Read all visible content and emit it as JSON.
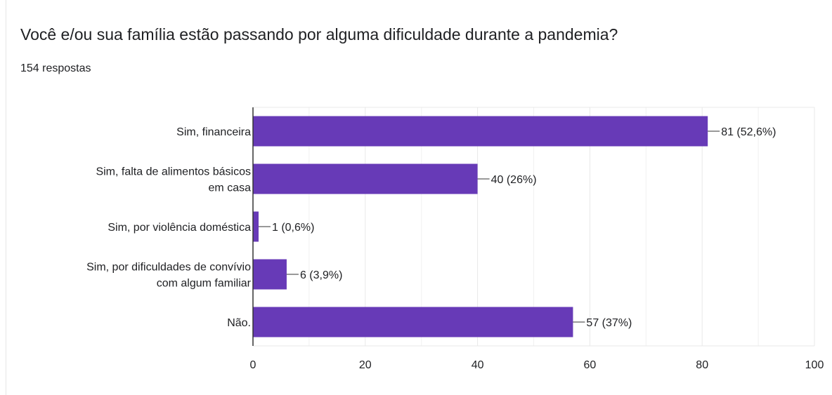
{
  "form": {
    "question": "Você e/ou sua família estão passando por alguma dificuldade durante a pandemia?",
    "responses": "154 respostas"
  },
  "colors": {
    "bar": "#673ab7",
    "grid": "#e8e8e8",
    "axis": "#333333",
    "text": "#202124"
  },
  "chart_data": {
    "type": "bar",
    "orientation": "horizontal",
    "categories": [
      [
        "Sim, financeira"
      ],
      [
        "Sim, falta de alimentos básicos",
        "em casa"
      ],
      [
        "Sim, por violência doméstica"
      ],
      [
        "Sim, por dificuldades de convívio",
        "com algum familiar"
      ],
      [
        "Não."
      ]
    ],
    "values": [
      81,
      40,
      1,
      6,
      57
    ],
    "data_labels": [
      "81 (52,6%)",
      "40 (26%)",
      "1 (0,6%)",
      "6 (3,9%)",
      "57 (37%)"
    ],
    "xlim": [
      0,
      100
    ],
    "xticks": [
      0,
      20,
      40,
      60,
      80,
      100
    ],
    "grid": true
  }
}
